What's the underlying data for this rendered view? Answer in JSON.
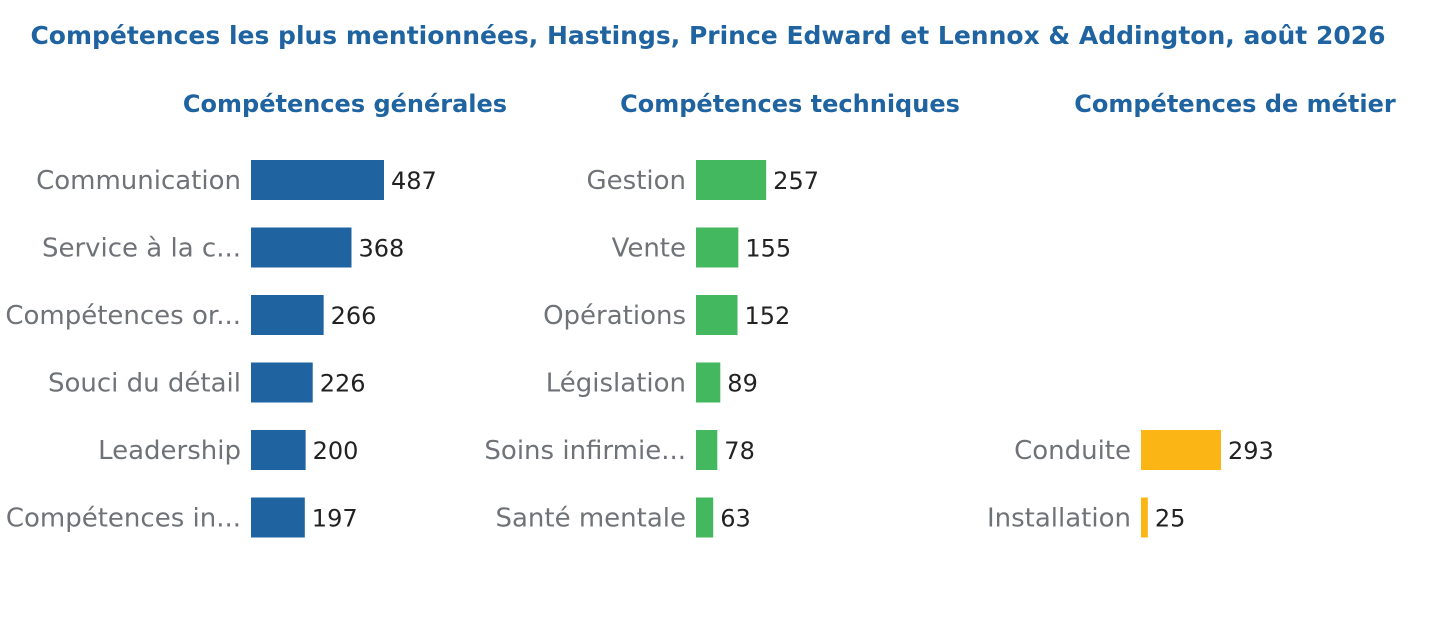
{
  "colors": {
    "title": "#1f64a0",
    "category_text": "#6f7378",
    "value_text": "#222222"
  },
  "chart_data": {
    "type": "bar",
    "title": "Compétences les plus mentionnées, Hastings, Prince Edward et Lennox & Addington, août 2026",
    "panels": [
      {
        "title": "Compétences générales",
        "orientation": "horizontal",
        "color": "#1f64a0",
        "categories": [
          "Communication",
          "Service à la c...",
          "Compétences or...",
          "Souci du détail",
          "Leadership",
          "Compétences in..."
        ],
        "values": [
          487,
          368,
          266,
          226,
          200,
          197
        ]
      },
      {
        "title": "Compétences techniques",
        "orientation": "horizontal",
        "color": "#44b85e",
        "categories": [
          "Gestion",
          "Vente",
          "Opérations",
          "Législation",
          "Soins infirmie...",
          "Santé mentale"
        ],
        "values": [
          257,
          155,
          152,
          89,
          78,
          63
        ]
      },
      {
        "title": "Compétences de métier",
        "orientation": "horizontal",
        "color": "#fbb616",
        "categories": [
          "",
          "",
          "",
          "",
          "Conduite",
          "Installation"
        ],
        "values": [
          null,
          null,
          null,
          null,
          293,
          25
        ]
      }
    ]
  }
}
